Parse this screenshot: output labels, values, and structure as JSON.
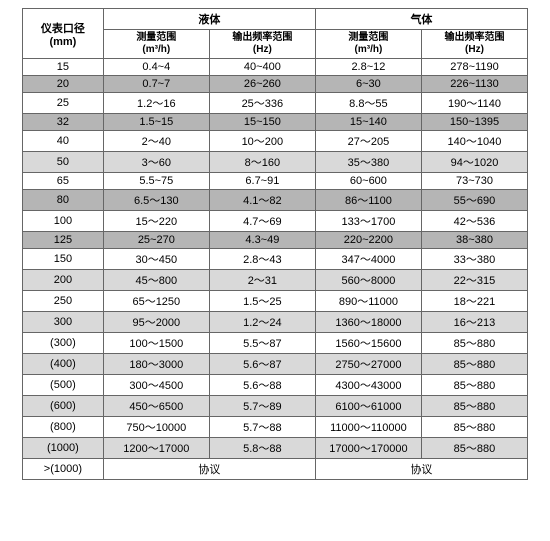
{
  "header": {
    "row_label_line1": "仪表口径",
    "row_label_line2": "(mm)",
    "group_liquid": "液体",
    "group_gas": "气体",
    "meas_range_label": "测量范围",
    "meas_range_unit": "(m³/h)",
    "freq_range_label": "输出频率范围",
    "freq_range_unit": "(Hz)"
  },
  "style": {
    "row_bg": {
      "white": "#ffffff",
      "light": "#d9d9d9",
      "dark": "#b5b5b5"
    },
    "border_color": "#666666",
    "font_size_body": 11,
    "font_size_sub": 10,
    "text_color": "#000000"
  },
  "rows": [
    {
      "bg": "white",
      "dia": "15",
      "l_m": "0.4~4",
      "l_f": "40~400",
      "g_m": "2.8~12",
      "g_f": "278~1190"
    },
    {
      "bg": "dark",
      "dia": "20",
      "l_m": "0.7~7",
      "l_f": "26~260",
      "g_m": "6~30",
      "g_f": "226~1130"
    },
    {
      "bg": "white",
      "dia": "25",
      "l_m": "1.2～16",
      "l_f": "25～336",
      "g_m": "8.8～55",
      "g_f": "190～1140"
    },
    {
      "bg": "dark",
      "dia": "32",
      "l_m": "1.5~15",
      "l_f": "15~150",
      "g_m": "15~140",
      "g_f": "150~1395"
    },
    {
      "bg": "white",
      "dia": "40",
      "l_m": "2～40",
      "l_f": "10～200",
      "g_m": "27～205",
      "g_f": "140～1040"
    },
    {
      "bg": "light",
      "dia": "50",
      "l_m": "3～60",
      "l_f": "8～160",
      "g_m": "35～380",
      "g_f": "94～1020"
    },
    {
      "bg": "white",
      "dia": "65",
      "l_m": "5.5~75",
      "l_f": "6.7~91",
      "g_m": "60~600",
      "g_f": "73~730"
    },
    {
      "bg": "dark",
      "dia": "80",
      "l_m": "6.5～130",
      "l_f": "4.1～82",
      "g_m": "86～1100",
      "g_f": "55～690"
    },
    {
      "bg": "white",
      "dia": "100",
      "l_m": "15～220",
      "l_f": "4.7～69",
      "g_m": "133～1700",
      "g_f": "42～536"
    },
    {
      "bg": "dark",
      "dia": "125",
      "l_m": "25~270",
      "l_f": "4.3~49",
      "g_m": "220~2200",
      "g_f": "38~380"
    },
    {
      "bg": "white",
      "dia": "150",
      "l_m": "30～450",
      "l_f": "2.8～43",
      "g_m": "347～4000",
      "g_f": "33～380"
    },
    {
      "bg": "light",
      "dia": "200",
      "l_m": "45～800",
      "l_f": "2～31",
      "g_m": "560～8000",
      "g_f": "22～315"
    },
    {
      "bg": "white",
      "dia": "250",
      "l_m": "65～1250",
      "l_f": "1.5～25",
      "g_m": "890～11000",
      "g_f": "18～221"
    },
    {
      "bg": "light",
      "dia": "300",
      "l_m": "95～2000",
      "l_f": "1.2～24",
      "g_m": "1360～18000",
      "g_f": "16～213"
    },
    {
      "bg": "white",
      "dia": "(300)",
      "l_m": "100～1500",
      "l_f": "5.5～87",
      "g_m": "1560～15600",
      "g_f": "85～880"
    },
    {
      "bg": "light",
      "dia": "(400)",
      "l_m": "180～3000",
      "l_f": "5.6～87",
      "g_m": "2750～27000",
      "g_f": "85～880"
    },
    {
      "bg": "white",
      "dia": "(500)",
      "l_m": "300～4500",
      "l_f": "5.6～88",
      "g_m": "4300～43000",
      "g_f": "85～880"
    },
    {
      "bg": "light",
      "dia": "(600)",
      "l_m": "450～6500",
      "l_f": "5.7～89",
      "g_m": "6100～61000",
      "g_f": "85～880"
    },
    {
      "bg": "white",
      "dia": "(800)",
      "l_m": "750～10000",
      "l_f": "5.7～88",
      "g_m": "11000～110000",
      "g_f": "85～880"
    },
    {
      "bg": "light",
      "dia": "(1000)",
      "l_m": "1200～17000",
      "l_f": "5.8～88",
      "g_m": "17000～170000",
      "g_f": "85～880"
    }
  ],
  "footer": {
    "dia": ">(1000)",
    "liquid_note": "协议",
    "gas_note": "协议"
  }
}
